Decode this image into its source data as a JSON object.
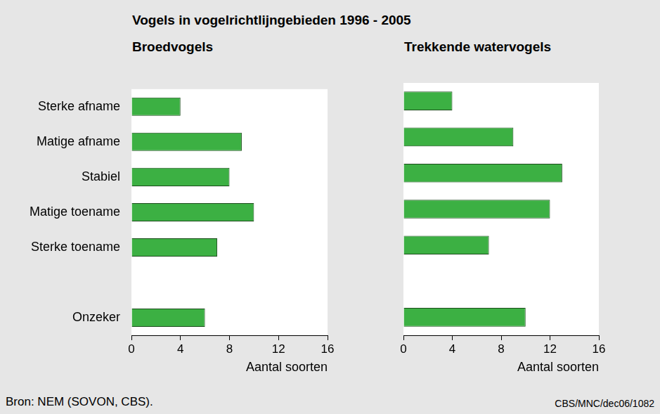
{
  "title": "Vogels in vogelrichtlijngebieden 1996 - 2005",
  "source": "Bron: NEM (SOVON, CBS).",
  "code": "CBS/MNC/dec06/1082",
  "chart_data": [
    {
      "type": "bar",
      "title": "Broedvogels",
      "orientation": "horizontal",
      "categories": [
        "Sterke afname",
        "Matige afname",
        "Stabiel",
        "Matige toename",
        "Sterke toename",
        null,
        "Onzeker"
      ],
      "values": [
        4,
        9,
        8,
        10,
        7,
        null,
        6
      ],
      "color": "#3cb043",
      "xlim": [
        0,
        16
      ],
      "xticks": [
        0,
        4,
        8,
        12,
        16
      ],
      "xlabel": "Aantal soorten",
      "grid": false
    },
    {
      "type": "bar",
      "title": "Trekkende watervogels",
      "orientation": "horizontal",
      "categories": [
        "Sterke afname",
        "Matige afname",
        "Stabiel",
        "Matige toename",
        "Sterke toename",
        null,
        "Onzeker"
      ],
      "values": [
        4,
        9,
        13,
        12,
        7,
        null,
        10
      ],
      "color": "#3cb043",
      "xlim": [
        0,
        16
      ],
      "xticks": [
        0,
        4,
        8,
        12,
        16
      ],
      "xlabel": "Aantal soorten",
      "grid": false,
      "tick_labels": "x"
    }
  ]
}
